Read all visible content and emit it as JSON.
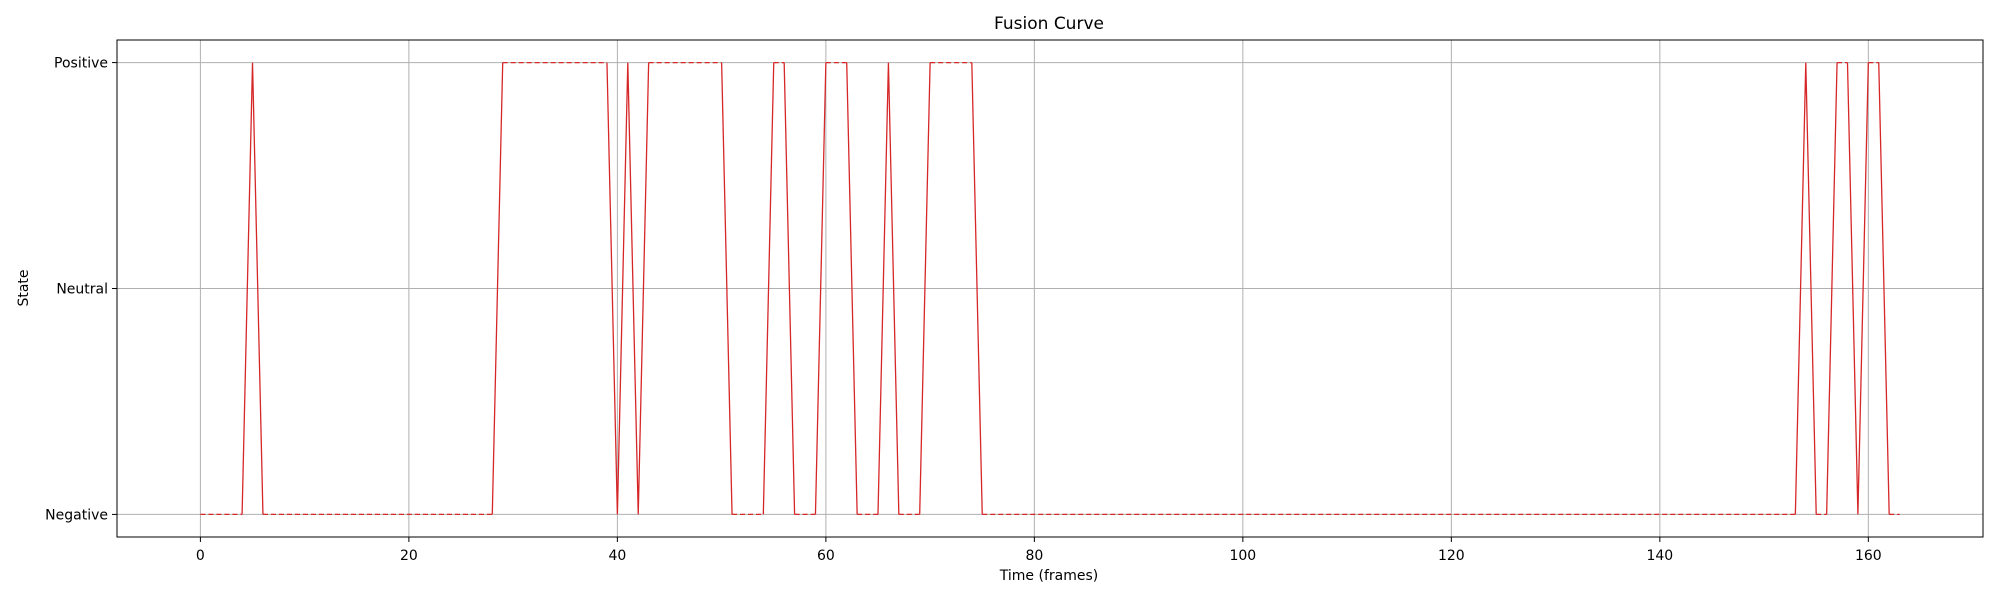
{
  "chart_data": {
    "type": "line",
    "title": "Fusion Curve",
    "xlabel": "Time (frames)",
    "ylabel": "State",
    "xlim": [
      -8,
      171
    ],
    "ylim": [
      -0.05,
      1.05
    ],
    "x_ticks": [
      0,
      20,
      40,
      60,
      80,
      100,
      120,
      140,
      160
    ],
    "y_ticks": [
      {
        "value": 0,
        "label": "Negative"
      },
      {
        "value": 0.5,
        "label": "Neutral"
      },
      {
        "value": 1,
        "label": "Positive"
      }
    ],
    "grid": true,
    "legend": "none",
    "line_color": "#d62728",
    "segments": [
      {
        "x": [
          0,
          4
        ],
        "y": [
          0,
          0
        ],
        "style": "dashed"
      },
      {
        "x": [
          4,
          5,
          6
        ],
        "y": [
          0,
          1,
          0
        ],
        "style": "solid"
      },
      {
        "x": [
          6,
          28
        ],
        "y": [
          0,
          0
        ],
        "style": "dashed"
      },
      {
        "x": [
          28,
          29
        ],
        "y": [
          0,
          1
        ],
        "style": "solid"
      },
      {
        "x": [
          29,
          39
        ],
        "y": [
          1,
          1
        ],
        "style": "dashed"
      },
      {
        "x": [
          39,
          40,
          41,
          42,
          43
        ],
        "y": [
          1,
          0,
          1,
          0,
          1
        ],
        "style": "solid"
      },
      {
        "x": [
          43,
          50
        ],
        "y": [
          1,
          1
        ],
        "style": "dashed"
      },
      {
        "x": [
          50,
          51
        ],
        "y": [
          1,
          0
        ],
        "style": "solid"
      },
      {
        "x": [
          51,
          54
        ],
        "y": [
          0,
          0
        ],
        "style": "dashed"
      },
      {
        "x": [
          54,
          55
        ],
        "y": [
          0,
          1
        ],
        "style": "solid"
      },
      {
        "x": [
          55,
          56
        ],
        "y": [
          1,
          1
        ],
        "style": "dashed"
      },
      {
        "x": [
          56,
          57
        ],
        "y": [
          1,
          0
        ],
        "style": "solid"
      },
      {
        "x": [
          57,
          59
        ],
        "y": [
          0,
          0
        ],
        "style": "dashed"
      },
      {
        "x": [
          59,
          60
        ],
        "y": [
          0,
          1
        ],
        "style": "solid"
      },
      {
        "x": [
          60,
          62
        ],
        "y": [
          1,
          1
        ],
        "style": "dashed"
      },
      {
        "x": [
          62,
          63
        ],
        "y": [
          1,
          0
        ],
        "style": "solid"
      },
      {
        "x": [
          63,
          65
        ],
        "y": [
          0,
          0
        ],
        "style": "dashed"
      },
      {
        "x": [
          65,
          66,
          67
        ],
        "y": [
          0,
          1,
          0
        ],
        "style": "solid"
      },
      {
        "x": [
          67,
          69
        ],
        "y": [
          0,
          0
        ],
        "style": "dashed"
      },
      {
        "x": [
          69,
          70
        ],
        "y": [
          0,
          1
        ],
        "style": "solid"
      },
      {
        "x": [
          70,
          74
        ],
        "y": [
          1,
          1
        ],
        "style": "dashed"
      },
      {
        "x": [
          74,
          75
        ],
        "y": [
          1,
          0
        ],
        "style": "solid"
      },
      {
        "x": [
          75,
          153
        ],
        "y": [
          0,
          0
        ],
        "style": "dashed"
      },
      {
        "x": [
          153,
          154,
          155
        ],
        "y": [
          0,
          1,
          0
        ],
        "style": "solid"
      },
      {
        "x": [
          155,
          156
        ],
        "y": [
          0,
          0
        ],
        "style": "dashed"
      },
      {
        "x": [
          156,
          157
        ],
        "y": [
          0,
          1
        ],
        "style": "solid"
      },
      {
        "x": [
          157,
          158
        ],
        "y": [
          1,
          1
        ],
        "style": "dashed"
      },
      {
        "x": [
          158,
          159,
          160
        ],
        "y": [
          1,
          0,
          1
        ],
        "style": "solid"
      },
      {
        "x": [
          160,
          161
        ],
        "y": [
          1,
          1
        ],
        "style": "dashed"
      },
      {
        "x": [
          161,
          162
        ],
        "y": [
          1,
          0
        ],
        "style": "solid"
      },
      {
        "x": [
          162,
          163
        ],
        "y": [
          0,
          0
        ],
        "style": "dashed"
      }
    ]
  }
}
